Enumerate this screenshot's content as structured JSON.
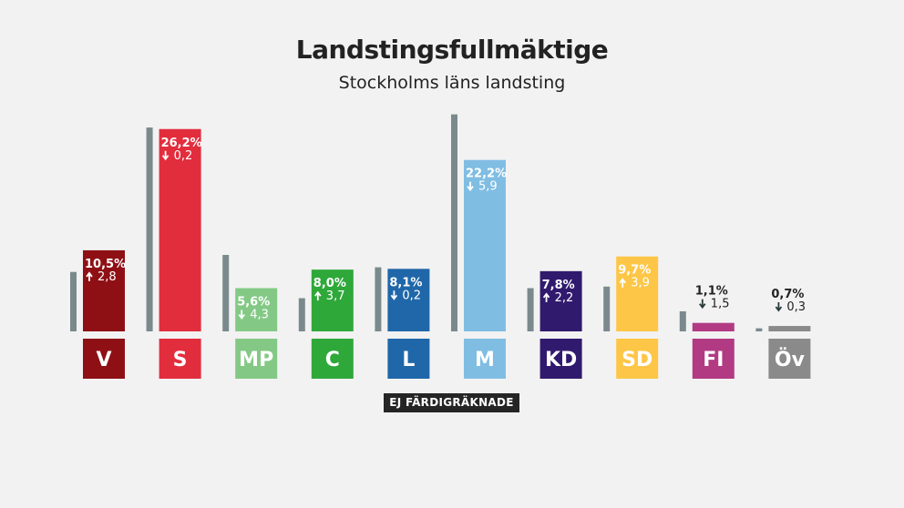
{
  "title": "Landstingsfullmäktige",
  "subtitle": "Stockholms läns landsting",
  "status_label": "EJ FÄRDIGRÄKNADE",
  "chart_data": {
    "type": "bar",
    "title": "Landstingsfullmäktige",
    "subtitle": "Stockholms läns landsting",
    "categories": [
      "V",
      "S",
      "MP",
      "C",
      "L",
      "M",
      "KD",
      "SD",
      "FI",
      "Öv"
    ],
    "series": [
      {
        "values": [
          7.7,
          26.4,
          9.9,
          4.3,
          8.3,
          28.1,
          5.6,
          5.8,
          2.6,
          0.4
        ]
      },
      {
        "values": [
          10.5,
          26.2,
          5.6,
          8.0,
          8.1,
          22.2,
          7.8,
          9.7,
          1.1,
          0.7
        ]
      }
    ],
    "value_labels": [
      "10,5%",
      "26,2%",
      "5,6%",
      "8,0%",
      "8,1%",
      "22,2%",
      "7,8%",
      "9,7%",
      "1,1%",
      "0,7%"
    ],
    "change_labels": [
      "2,8",
      "0,2",
      "4,3",
      "3,7",
      "0,2",
      "5,9",
      "2,2",
      "3,9",
      "1,5",
      "0,3"
    ],
    "change_direction": [
      "up",
      "down",
      "down",
      "up",
      "down",
      "down",
      "up",
      "up",
      "down",
      "down"
    ],
    "colors": [
      "#8e1015",
      "#e22d3d",
      "#83c985",
      "#2fa83a",
      "#1f67a9",
      "#80bde3",
      "#301a6d",
      "#fdc647",
      "#b23a83",
      "#8a8a8a"
    ],
    "previous_color": "#7a8a8c",
    "label_text_color": "#ffffff",
    "outside_label_color": "#222222",
    "ylim": [
      0,
      29
    ]
  }
}
